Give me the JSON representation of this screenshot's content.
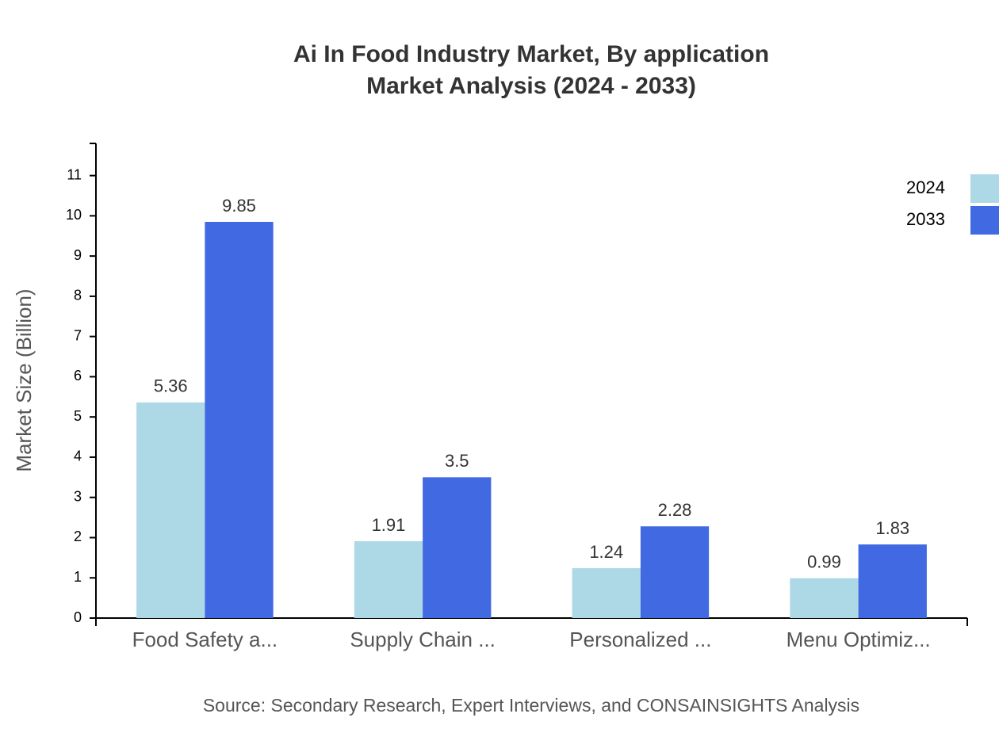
{
  "chart_data": {
    "type": "bar",
    "title": "Ai In Food Industry Market, By application",
    "subtitle": "Market Analysis (2024 - 2033)",
    "y_label": "Market Size (Billion)",
    "source": "Source: Secondary Research, Expert Interviews, and CONSAINSIGHTS Analysis",
    "categories": [
      "Food Safety a...",
      "Supply Chain ...",
      "Personalized ...",
      "Menu Optimiz..."
    ],
    "series": [
      {
        "name": "2024",
        "color": "#add8e6",
        "values": [
          5.36,
          1.91,
          1.24,
          0.99
        ]
      },
      {
        "name": "2033",
        "color": "#4169e1",
        "values": [
          9.85,
          3.5,
          2.28,
          1.83
        ]
      }
    ],
    "ylim": [
      0,
      11.8
    ],
    "yticks": [
      0,
      1,
      2,
      3,
      4,
      5,
      6,
      7,
      8,
      9,
      10,
      11
    ],
    "legend": "top-right"
  }
}
